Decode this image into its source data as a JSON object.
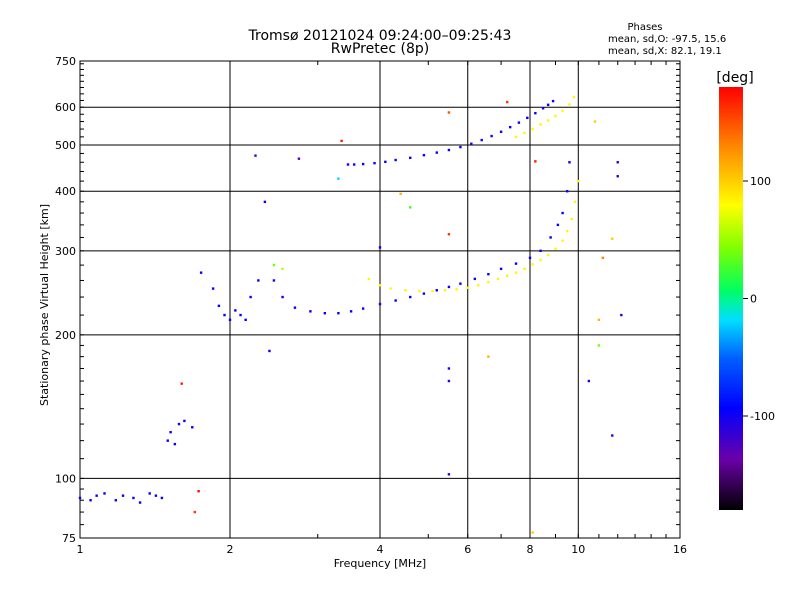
{
  "chart_data": {
    "type": "scatter",
    "title": "Tromsø 20121024 09:24:00–09:25:43",
    "subtitle": "RwPretec (8p)",
    "xlabel": "Frequency [MHz]",
    "ylabel": "Stationary phase Virtual Height [km]",
    "x_scale": "log",
    "y_scale": "log",
    "xlim": [
      1,
      16
    ],
    "ylim": [
      75,
      750
    ],
    "x_ticks": [
      1,
      2,
      4,
      6,
      8,
      10,
      16
    ],
    "y_ticks": [
      75,
      100,
      200,
      300,
      400,
      500,
      600,
      750
    ],
    "grid_x": [
      2,
      4,
      6,
      8,
      10
    ],
    "grid_y": [
      100,
      200,
      300,
      400,
      500,
      600
    ],
    "legend": {
      "title": "Phases",
      "line1": "mean, sd,O: -97.5, 15.6",
      "line2": "mean, sd,X:  82.1, 19.1"
    },
    "colorbar": {
      "label": "[deg]",
      "range": [
        -180,
        180
      ],
      "ticks": [
        100,
        0,
        -100
      ],
      "tick_labels": [
        "100",
        "0",
        "-100"
      ]
    },
    "series": [
      {
        "mode": "O",
        "phase_deg": -97.5,
        "x": [
          1.0,
          1.05,
          1.08,
          1.12,
          1.18,
          1.22,
          1.28,
          1.32,
          1.38,
          1.42,
          1.46,
          1.5,
          1.52,
          1.55,
          1.58,
          1.62,
          1.68,
          1.75,
          1.85,
          1.9,
          1.95,
          2.0,
          2.05,
          2.1,
          2.15,
          2.2,
          2.28,
          2.35,
          2.45,
          2.55,
          2.7,
          2.9,
          3.1,
          3.3,
          3.5,
          3.7,
          4.0,
          4.3,
          4.6,
          4.9,
          5.2,
          5.5,
          5.8,
          6.2,
          6.6,
          7.0,
          7.5,
          8.0,
          8.4,
          8.8,
          9.1,
          9.3,
          9.5,
          9.6
        ],
        "y": [
          91,
          90,
          92,
          93,
          90,
          92,
          91,
          89,
          93,
          92,
          91,
          120,
          125,
          118,
          130,
          132,
          128,
          270,
          250,
          230,
          220,
          215,
          225,
          220,
          215,
          240,
          260,
          380,
          260,
          240,
          228,
          224,
          222,
          222,
          224,
          227,
          232,
          236,
          240,
          244,
          248,
          252,
          256,
          262,
          268,
          275,
          282,
          290,
          300,
          320,
          340,
          360,
          400,
          460
        ]
      },
      {
        "mode": "O-F2-upper",
        "phase_deg": -97.5,
        "x": [
          3.45,
          3.55,
          3.7,
          3.9,
          4.1,
          4.3,
          4.6,
          4.9,
          5.2,
          5.5,
          5.8,
          6.1,
          6.4,
          6.7,
          7.0,
          7.3,
          7.6,
          7.9,
          8.2,
          8.5,
          8.7,
          8.9
        ],
        "y": [
          455,
          455,
          456,
          458,
          461,
          465,
          470,
          476,
          482,
          488,
          495,
          503,
          512,
          522,
          533,
          545,
          557,
          570,
          583,
          597,
          607,
          618
        ]
      },
      {
        "mode": "X",
        "phase_deg": 82.1,
        "x": [
          3.8,
          4.0,
          4.2,
          4.5,
          4.8,
          5.1,
          5.4,
          5.7,
          6.0,
          6.3,
          6.6,
          6.9,
          7.2,
          7.5,
          7.8,
          8.1,
          8.4,
          8.7,
          9.0,
          9.3,
          9.5,
          9.7,
          9.85,
          10.0
        ],
        "y": [
          262,
          254,
          250,
          248,
          247,
          247,
          248,
          249,
          251,
          254,
          258,
          262,
          266,
          270,
          275,
          281,
          287,
          294,
          303,
          315,
          330,
          350,
          380,
          420
        ]
      },
      {
        "mode": "X-F2-upper",
        "phase_deg": 82.1,
        "x": [
          7.5,
          7.8,
          8.1,
          8.4,
          8.7,
          9.0,
          9.3,
          9.6,
          9.8
        ],
        "y": [
          520,
          530,
          540,
          552,
          563,
          575,
          590,
          608,
          630
        ]
      }
    ],
    "scattered": [
      {
        "x": 4.4,
        "y": 395,
        "phase_deg": 110
      },
      {
        "x": 5.5,
        "y": 585,
        "phase_deg": 150
      },
      {
        "x": 7.2,
        "y": 615,
        "phase_deg": 160
      },
      {
        "x": 8.2,
        "y": 462,
        "phase_deg": 170
      },
      {
        "x": 10.8,
        "y": 560,
        "phase_deg": 100
      },
      {
        "x": 11.7,
        "y": 318,
        "phase_deg": 100
      },
      {
        "x": 11.2,
        "y": 290,
        "phase_deg": 130
      },
      {
        "x": 11.0,
        "y": 215,
        "phase_deg": 110
      },
      {
        "x": 6.6,
        "y": 180,
        "phase_deg": 110
      },
      {
        "x": 8.1,
        "y": 77,
        "phase_deg": 100
      },
      {
        "x": 5.5,
        "y": 325,
        "phase_deg": 160
      },
      {
        "x": 1.6,
        "y": 158,
        "phase_deg": 170
      },
      {
        "x": 1.7,
        "y": 85,
        "phase_deg": 160
      },
      {
        "x": 1.73,
        "y": 94,
        "phase_deg": 175
      },
      {
        "x": 2.45,
        "y": 280,
        "phase_deg": 40
      },
      {
        "x": 2.55,
        "y": 275,
        "phase_deg": 60
      },
      {
        "x": 3.3,
        "y": 425,
        "phase_deg": -20
      },
      {
        "x": 3.35,
        "y": 510,
        "phase_deg": 170
      },
      {
        "x": 4.6,
        "y": 370,
        "phase_deg": 20
      },
      {
        "x": 10.5,
        "y": 160,
        "phase_deg": -110
      },
      {
        "x": 11.0,
        "y": 190,
        "phase_deg": 40
      },
      {
        "x": 12.2,
        "y": 220,
        "phase_deg": -110
      },
      {
        "x": 11.7,
        "y": 123,
        "phase_deg": -110
      },
      {
        "x": 12.0,
        "y": 430,
        "phase_deg": -110
      },
      {
        "x": 12.0,
        "y": 460,
        "phase_deg": -110
      },
      {
        "x": 5.5,
        "y": 102,
        "phase_deg": -110
      },
      {
        "x": 5.5,
        "y": 160,
        "phase_deg": -110
      },
      {
        "x": 5.5,
        "y": 170,
        "phase_deg": -110
      },
      {
        "x": 2.25,
        "y": 475,
        "phase_deg": -120
      },
      {
        "x": 2.75,
        "y": 468,
        "phase_deg": -130
      },
      {
        "x": 4.0,
        "y": 305,
        "phase_deg": -100
      },
      {
        "x": 2.4,
        "y": 185,
        "phase_deg": -100
      }
    ]
  }
}
